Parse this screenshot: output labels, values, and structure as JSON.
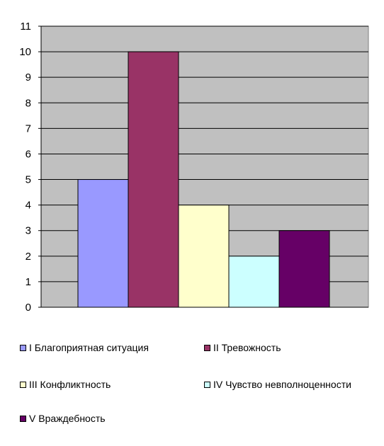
{
  "chart_data": {
    "type": "bar",
    "categories": [
      "I Благоприятная ситуация",
      "II Тревожность",
      "III Конфликтность",
      "IV Чувство невполноценности",
      "V Враждебность"
    ],
    "values": [
      5,
      10,
      4,
      2,
      3
    ],
    "colors": [
      "#9999ff",
      "#993366",
      "#ffffcc",
      "#ccffff",
      "#660066"
    ],
    "ylim": [
      0,
      11
    ],
    "yticks": [
      0,
      1,
      2,
      3,
      4,
      5,
      6,
      7,
      8,
      9,
      10,
      11
    ],
    "grid": true,
    "plot_background": "#c0c0c0",
    "legend_placement": "bottom",
    "title": "",
    "xlabel": "",
    "ylabel": ""
  }
}
